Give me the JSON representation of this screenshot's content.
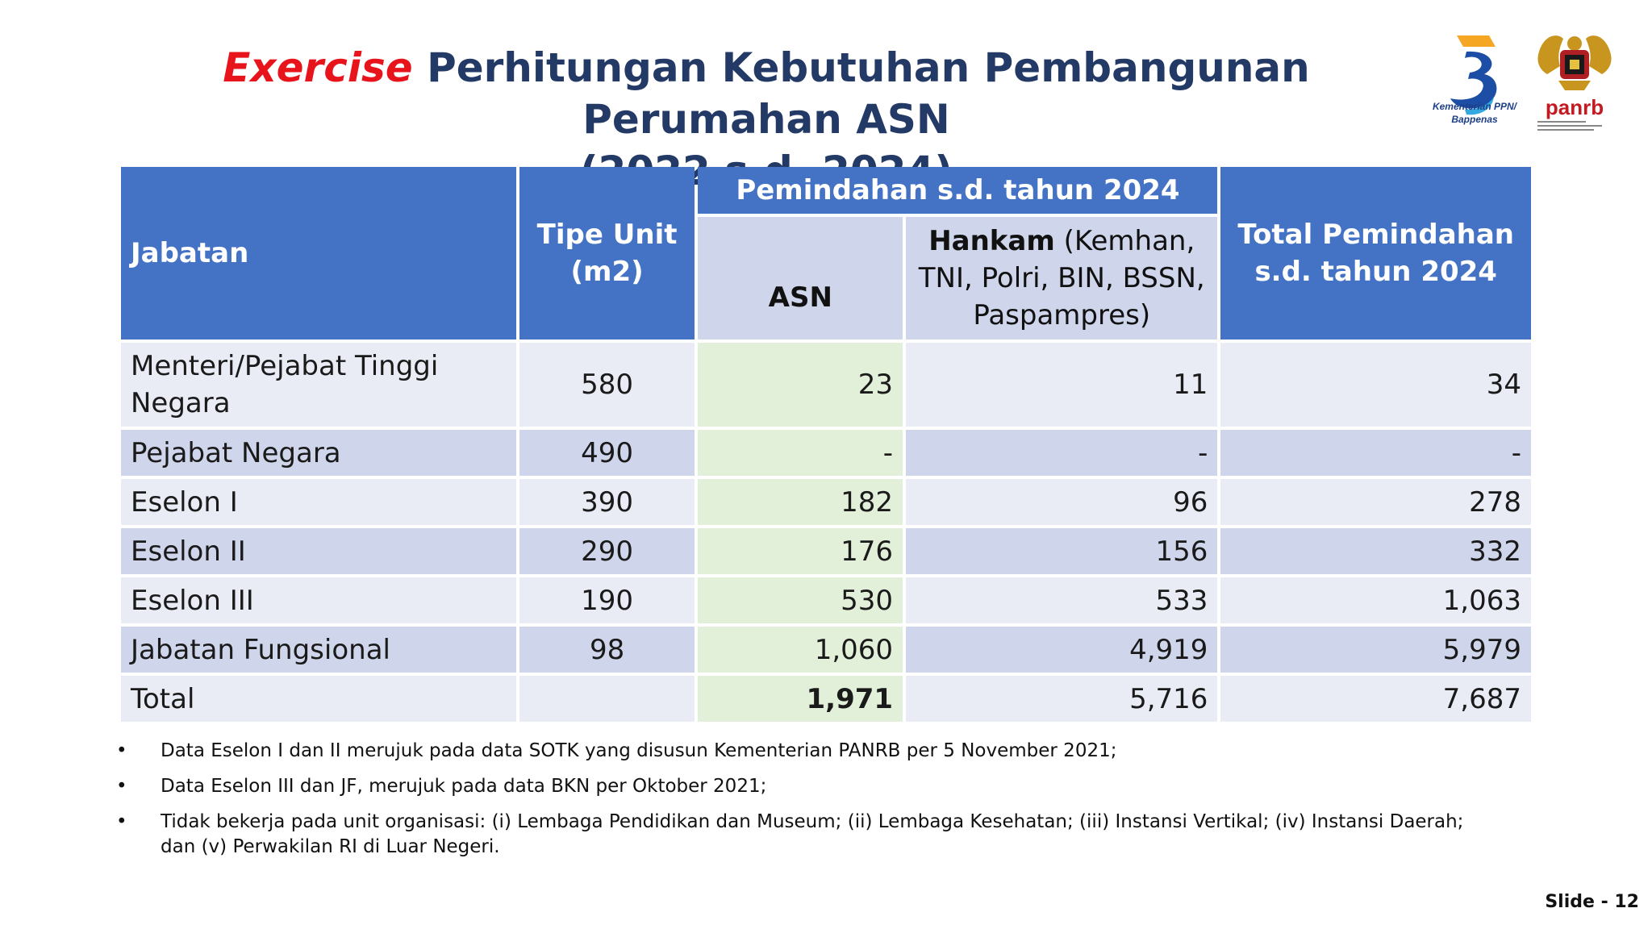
{
  "title": {
    "highlight": "Exercise",
    "line1": "Perhitungan Kebutuhan Pembangunan Perumahan ASN",
    "line2": "(2022 s.d. 2024)"
  },
  "logos": {
    "bappenas": "Kementerian PPN/ Bappenas",
    "panrb": "panrb"
  },
  "table": {
    "headers": {
      "jabatan": "Jabatan",
      "tipe_unit": "Tipe Unit (m2)",
      "pemindahan": "Pemindahan s.d. tahun 2024",
      "asn": "ASN",
      "hankam_bold": "Hankam",
      "hankam_rest": "(Kemhan, TNI, Polri, BIN, BSSN, Paspampres)",
      "total": "Total Pemindahan s.d. tahun 2024"
    },
    "rows": [
      {
        "jabatan": "Menteri/Pejabat Tinggi Negara",
        "tipe": "580",
        "asn": "23",
        "hankam": "11",
        "total": "34"
      },
      {
        "jabatan": "Pejabat Negara",
        "tipe": "490",
        "asn": "-",
        "hankam": "-",
        "total": "-"
      },
      {
        "jabatan": "Eselon I",
        "tipe": "390",
        "asn": "182",
        "hankam": "96",
        "total": "278"
      },
      {
        "jabatan": "Eselon II",
        "tipe": "290",
        "asn": "176",
        "hankam": "156",
        "total": "332"
      },
      {
        "jabatan": "Eselon III",
        "tipe": "190",
        "asn": "530",
        "hankam": "533",
        "total": "1,063"
      },
      {
        "jabatan": "Jabatan Fungsional",
        "tipe": "98",
        "asn": "1,060",
        "hankam": "4,919",
        "total": "5,979"
      },
      {
        "jabatan": "Total",
        "tipe": "",
        "asn": "1,971",
        "hankam": "5,716",
        "total": "7,687"
      }
    ]
  },
  "notes": [
    "Data Eselon I dan II merujuk pada data SOTK yang disusun Kementerian PANRB per 5 November 2021;",
    "Data Eselon III dan JF, merujuk pada data BKN per Oktober 2021;",
    "Tidak bekerja pada unit organisasi: (i) Lembaga Pendidikan dan Museum; (ii) Lembaga Kesehatan; (iii) Instansi Vertikal; (iv) Instansi Daerah; dan  (v) Perwakilan RI di Luar Negeri."
  ],
  "bullet": "•",
  "slide_number": "Slide - 12",
  "colors": {
    "header_blue": "#4472c4",
    "header_light": "#cfd5ea",
    "asn_column": "#e2efd9",
    "title_navy": "#243a66",
    "highlight_red": "#e8141c"
  }
}
